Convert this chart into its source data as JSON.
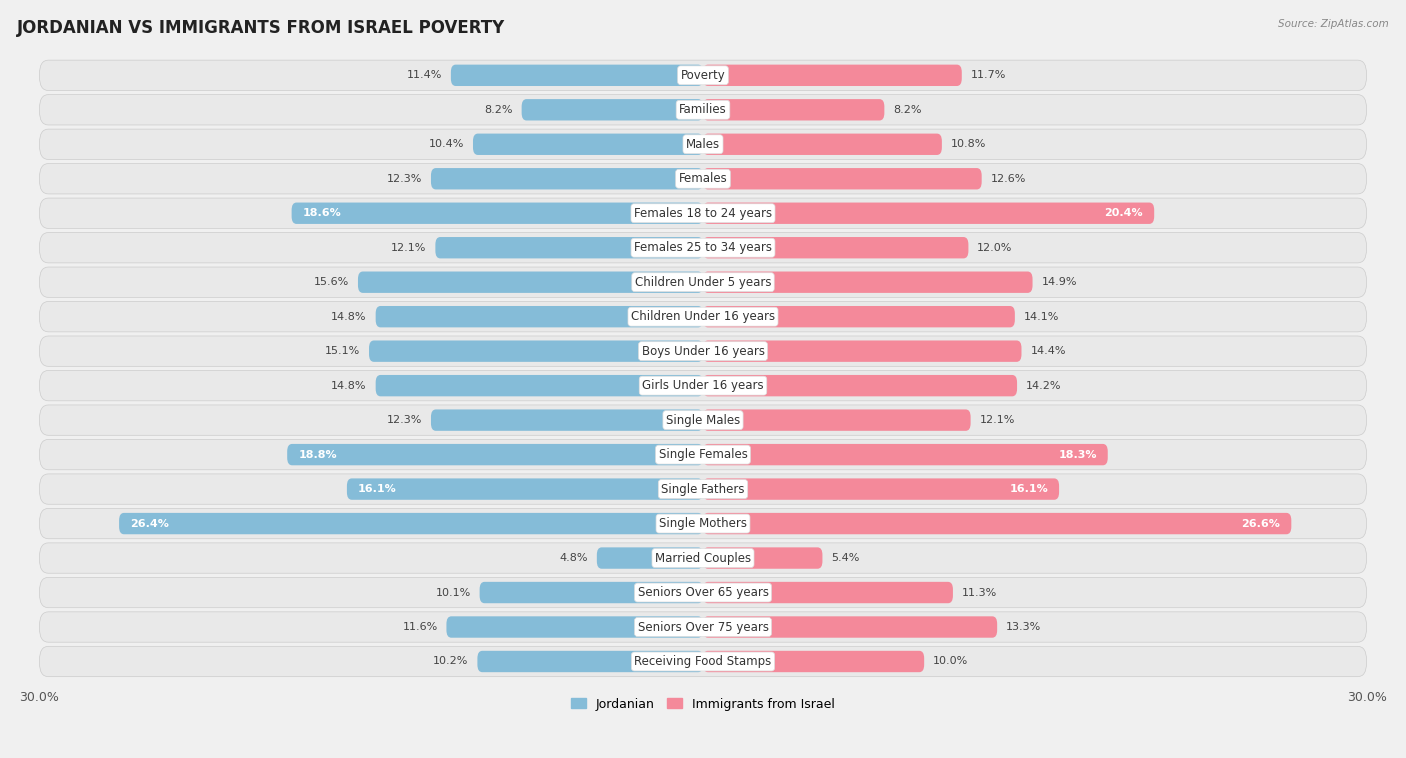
{
  "title": "JORDANIAN VS IMMIGRANTS FROM ISRAEL POVERTY",
  "source": "Source: ZipAtlas.com",
  "categories": [
    "Poverty",
    "Families",
    "Males",
    "Females",
    "Females 18 to 24 years",
    "Females 25 to 34 years",
    "Children Under 5 years",
    "Children Under 16 years",
    "Boys Under 16 years",
    "Girls Under 16 years",
    "Single Males",
    "Single Females",
    "Single Fathers",
    "Single Mothers",
    "Married Couples",
    "Seniors Over 65 years",
    "Seniors Over 75 years",
    "Receiving Food Stamps"
  ],
  "jordanian": [
    11.4,
    8.2,
    10.4,
    12.3,
    18.6,
    12.1,
    15.6,
    14.8,
    15.1,
    14.8,
    12.3,
    18.8,
    16.1,
    26.4,
    4.8,
    10.1,
    11.6,
    10.2
  ],
  "israel": [
    11.7,
    8.2,
    10.8,
    12.6,
    20.4,
    12.0,
    14.9,
    14.1,
    14.4,
    14.2,
    12.1,
    18.3,
    16.1,
    26.6,
    5.4,
    11.3,
    13.3,
    10.0
  ],
  "jordanian_color": "#85bcd8",
  "israel_color": "#f4899a",
  "background_color": "#f0f0f0",
  "row_color": "#e8e8e8",
  "max_val": 30.0,
  "legend_jordanian": "Jordanian",
  "legend_israel": "Immigrants from Israel",
  "title_fontsize": 12,
  "label_fontsize": 8.5,
  "value_fontsize": 8,
  "inside_threshold": 16.0
}
